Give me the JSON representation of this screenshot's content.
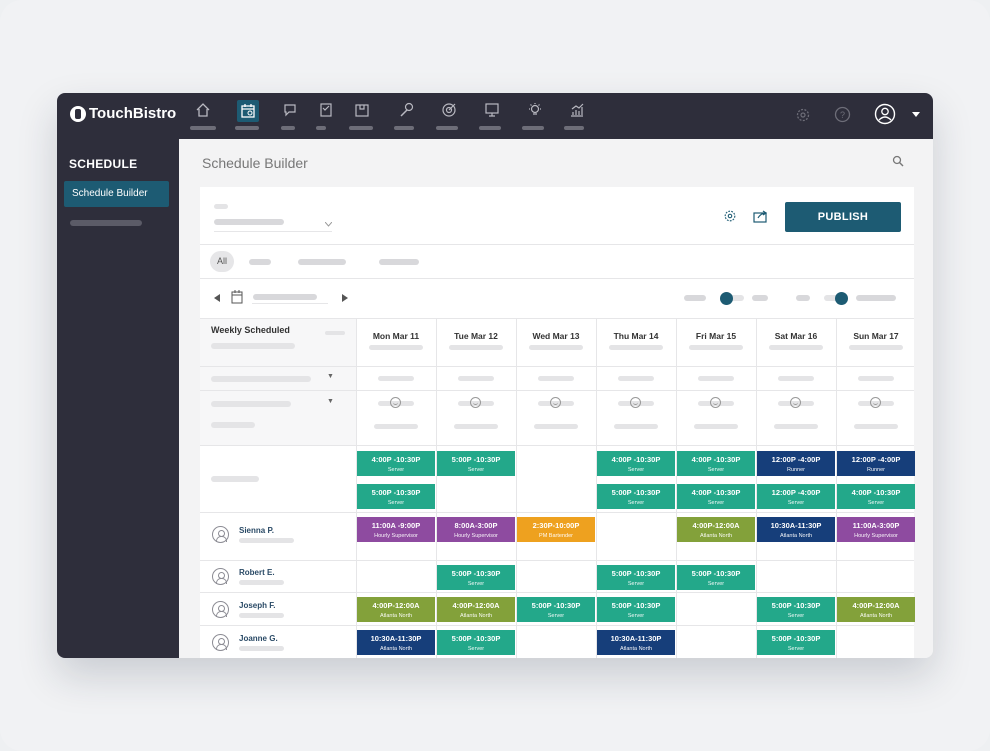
{
  "app": {
    "brand": "TouchBistro"
  },
  "nav": {
    "icons": [
      "home-icon",
      "schedule-icon",
      "chat-icon",
      "clipboard-icon",
      "box-icon",
      "mic-icon",
      "target-icon",
      "monitor-icon",
      "lightbulb-icon",
      "analytics-icon"
    ],
    "right_icons": [
      "settings-icon",
      "help-icon",
      "user-icon",
      "caret-down-icon"
    ]
  },
  "sidebar": {
    "title": "SCHEDULE",
    "items": [
      {
        "label": "Schedule Builder"
      }
    ]
  },
  "page": {
    "title": "Schedule Builder"
  },
  "toolbar": {
    "publish_label": "PUBLISH"
  },
  "filters": {
    "all_label": "All"
  },
  "schedule": {
    "weekly_label": "Weekly Scheduled",
    "days": [
      "Mon Mar 11",
      "Tue Mar 12",
      "Wed Mar 13",
      "Thu Mar 14",
      "Fri Mar 15",
      "Sat Mar 16",
      "Sun Mar 17"
    ],
    "employees": [
      {
        "name": "Sienna P."
      },
      {
        "name": "Robert E."
      },
      {
        "name": "Joseph F."
      },
      {
        "name": "Joanne G."
      }
    ],
    "shifts": [
      {
        "row": "open1",
        "day": 0,
        "time": "4:00P -10:30P",
        "role": "Server",
        "color": "teal"
      },
      {
        "row": "open1",
        "day": 1,
        "time": "5:00P -10:30P",
        "role": "Server",
        "color": "teal"
      },
      {
        "row": "open1",
        "day": 3,
        "time": "4:00P -10:30P",
        "role": "Server",
        "color": "teal"
      },
      {
        "row": "open1",
        "day": 4,
        "time": "4:00P -10:30P",
        "role": "Server",
        "color": "teal"
      },
      {
        "row": "open1",
        "day": 5,
        "time": "12:00P -4:00P",
        "role": "Runner",
        "color": "navy"
      },
      {
        "row": "open1",
        "day": 6,
        "time": "12:00P -4:00P",
        "role": "Runner",
        "color": "navy"
      },
      {
        "row": "open2",
        "day": 0,
        "time": "5:00P -10:30P",
        "role": "Server",
        "color": "teal"
      },
      {
        "row": "open2",
        "day": 3,
        "time": "5:00P -10:30P",
        "role": "Server",
        "color": "teal"
      },
      {
        "row": "open2",
        "day": 4,
        "time": "4:00P -10:30P",
        "role": "Server",
        "color": "teal"
      },
      {
        "row": "open2",
        "day": 5,
        "time": "12:00P -4:00P",
        "role": "Server",
        "color": "teal"
      },
      {
        "row": "open2",
        "day": 6,
        "time": "4:00P -10:30P",
        "role": "Server",
        "color": "teal"
      },
      {
        "row": "emp0",
        "day": 0,
        "time": "11:00A -9:00P",
        "role": "Hourly Supervisor",
        "color": "purple"
      },
      {
        "row": "emp0",
        "day": 1,
        "time": "8:00A-3:00P",
        "role": "Hourly Supervisor",
        "color": "purple"
      },
      {
        "row": "emp0",
        "day": 2,
        "time": "2:30P-10:00P",
        "role": "PM Bartender",
        "color": "orange"
      },
      {
        "row": "emp0",
        "day": 4,
        "time": "4:00P-12:00A",
        "role": "Atlanta North",
        "color": "olive"
      },
      {
        "row": "emp0",
        "day": 5,
        "time": "10:30A-11:30P",
        "role": "Atlanta North",
        "color": "navy"
      },
      {
        "row": "emp0",
        "day": 6,
        "time": "11:00A-3:00P",
        "role": "Hourly Supervisor",
        "color": "purple"
      },
      {
        "row": "emp1",
        "day": 1,
        "time": "5:00P -10:30P",
        "role": "Server",
        "color": "teal"
      },
      {
        "row": "emp1",
        "day": 3,
        "time": "5:00P -10:30P",
        "role": "Server",
        "color": "teal"
      },
      {
        "row": "emp1",
        "day": 4,
        "time": "5:00P -10:30P",
        "role": "Server",
        "color": "teal"
      },
      {
        "row": "emp2",
        "day": 0,
        "time": "4:00P-12:00A",
        "role": "Atlanta North",
        "color": "olive"
      },
      {
        "row": "emp2",
        "day": 1,
        "time": "4:00P-12:00A",
        "role": "Atlanta North",
        "color": "olive"
      },
      {
        "row": "emp2",
        "day": 2,
        "time": "5:00P -10:30P",
        "role": "Server",
        "color": "teal"
      },
      {
        "row": "emp2",
        "day": 3,
        "time": "5:00P -10:30P",
        "role": "Server",
        "color": "teal"
      },
      {
        "row": "emp2",
        "day": 5,
        "time": "5:00P -10:30P",
        "role": "Server",
        "color": "teal"
      },
      {
        "row": "emp2",
        "day": 6,
        "time": "4:00P-12:00A",
        "role": "Atlanta North",
        "color": "olive"
      },
      {
        "row": "emp3",
        "day": 0,
        "time": "10:30A-11:30P",
        "role": "Atlanta North",
        "color": "navy"
      },
      {
        "row": "emp3",
        "day": 1,
        "time": "5:00P -10:30P",
        "role": "Server",
        "color": "teal"
      },
      {
        "row": "emp3",
        "day": 3,
        "time": "10:30A-11:30P",
        "role": "Atlanta North",
        "color": "navy"
      },
      {
        "row": "emp3",
        "day": 5,
        "time": "5:00P -10:30P",
        "role": "Server",
        "color": "teal"
      }
    ]
  },
  "colors": {
    "teal": "#23a88a",
    "navy": "#163e7a",
    "purple": "#8e4ba0",
    "olive": "#83a13a",
    "orange": "#eea11f",
    "accent": "#1d5b73"
  }
}
